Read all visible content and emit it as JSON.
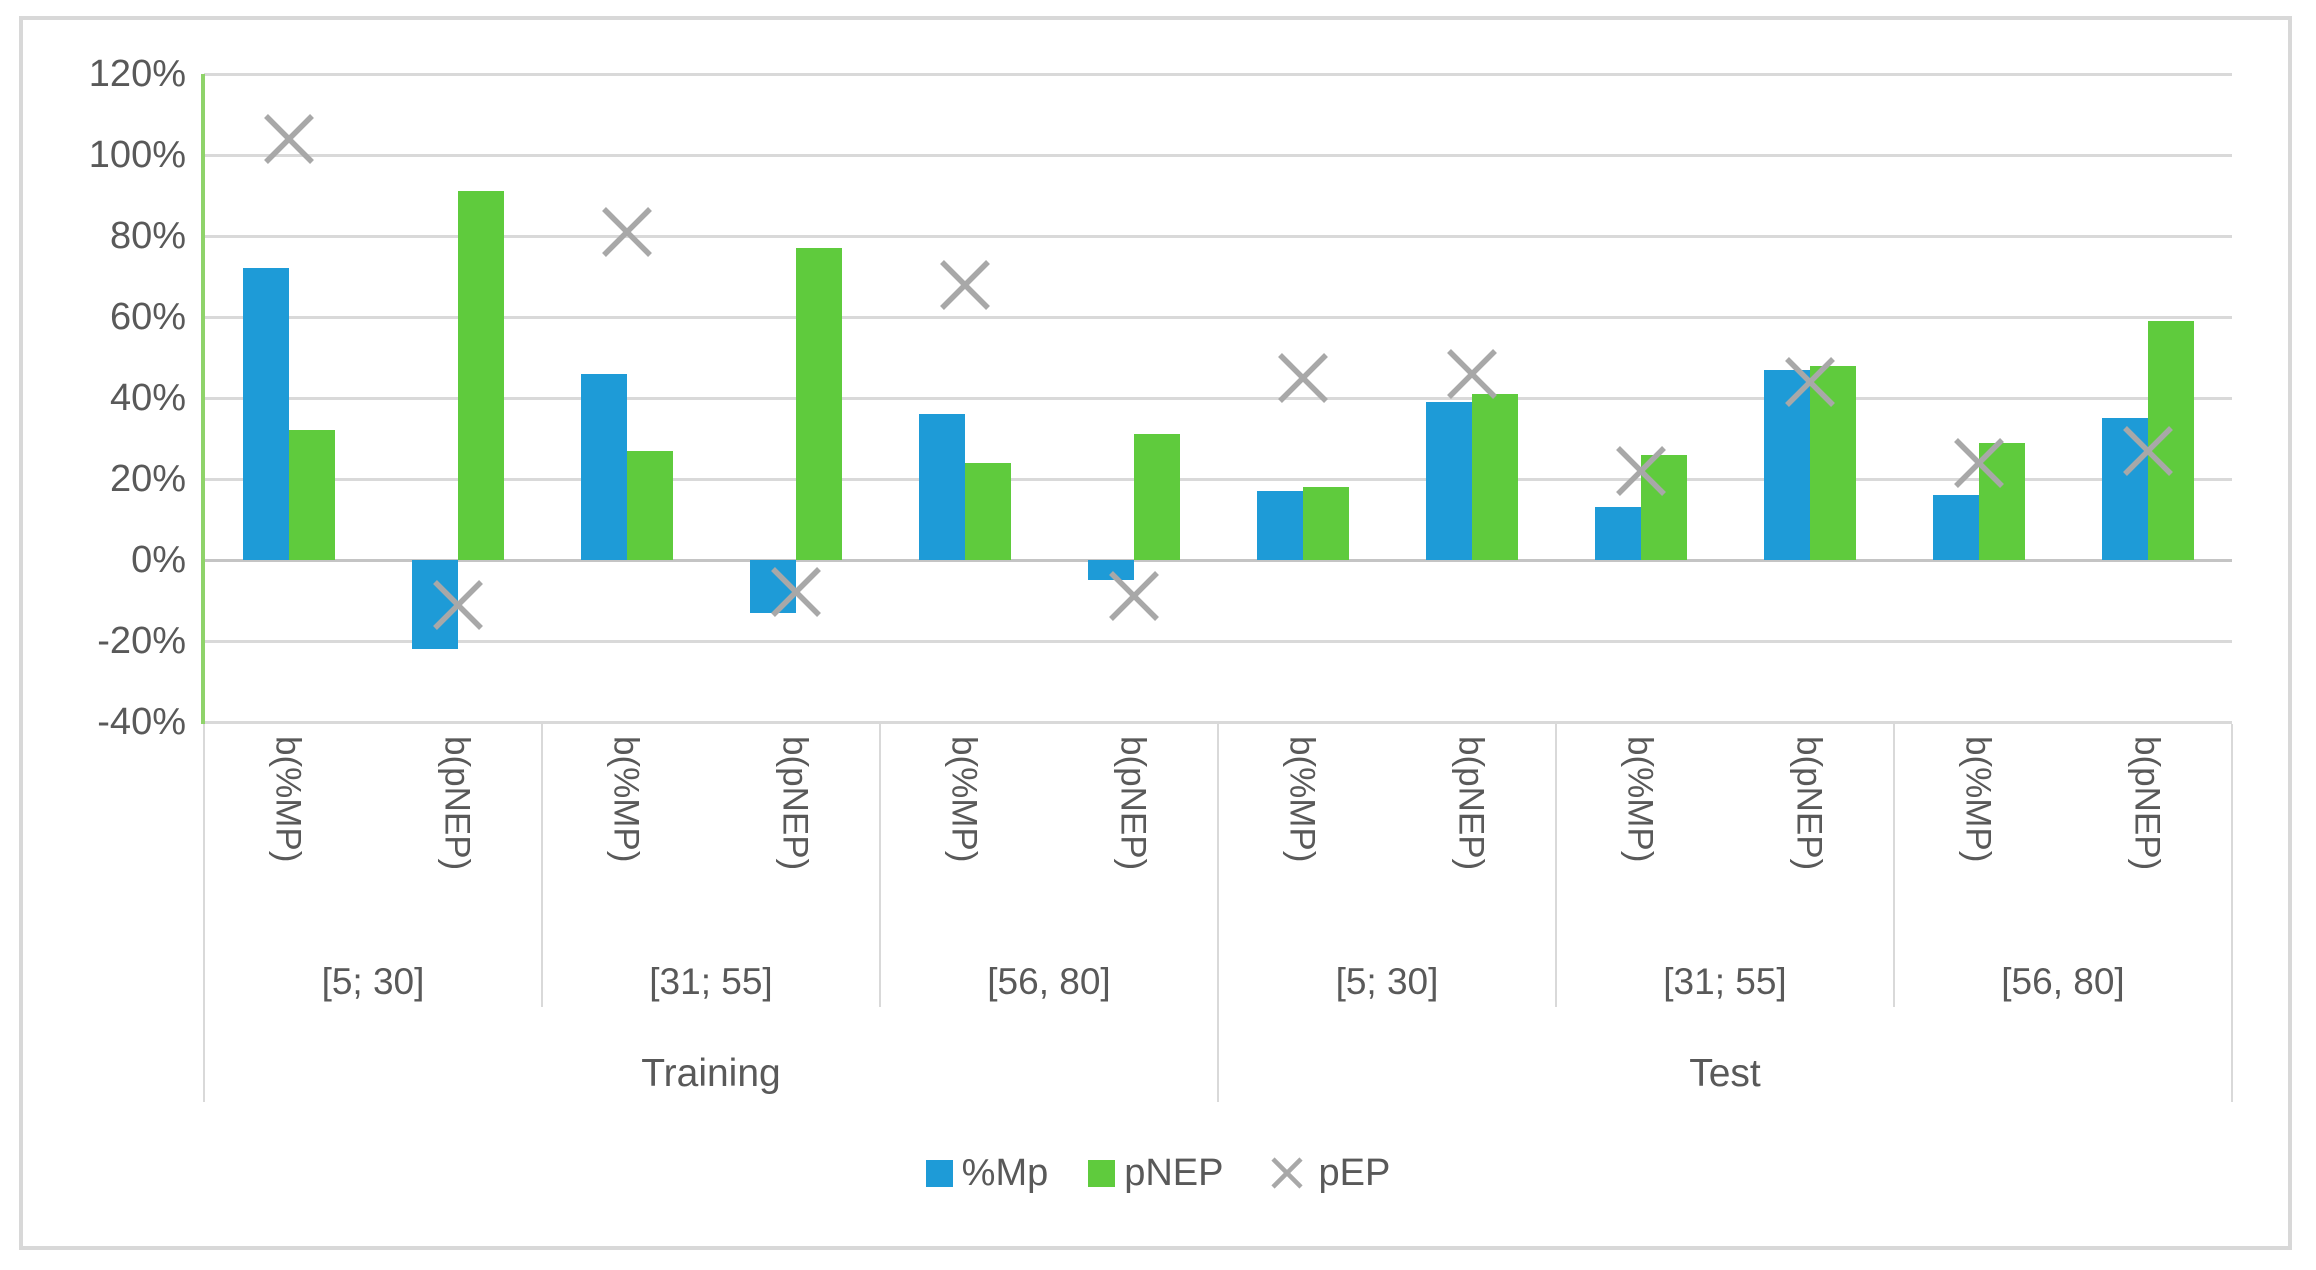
{
  "figure": {
    "background": "#FFFFFF",
    "border_color": "#D8D8D8"
  },
  "colors": {
    "bar_blue": "#1E9BD7",
    "bar_green": "#5FCB3D",
    "marker_gray": "#A8A8A8",
    "gridline": "#D9D9D9",
    "zero_line": "#C4C4C4",
    "value_axis_line_green": "#8FD36A",
    "axis_text": "#595959"
  },
  "chart_data": {
    "type": "bar",
    "title": "",
    "xlabel": "",
    "ylabel": "",
    "ylim": [
      -40,
      120
    ],
    "gridline_step": 20,
    "grid": "horizontal",
    "legend_position": "bottom",
    "yticks": [
      {
        "value": 120,
        "label": "120%"
      },
      {
        "value": 100,
        "label": "100%"
      },
      {
        "value": 80,
        "label": "80%"
      },
      {
        "value": 60,
        "label": "60%"
      },
      {
        "value": 40,
        "label": "40%"
      },
      {
        "value": 20,
        "label": "20%"
      },
      {
        "value": 0,
        "label": "0%"
      },
      {
        "value": -20,
        "label": "-20%"
      },
      {
        "value": -40,
        "label": "-40%"
      }
    ],
    "sections": [
      {
        "label": "Training",
        "ranges": [
          {
            "label": "[5; 30]"
          },
          {
            "label": "[31; 55]"
          },
          {
            "label": "[56, 80]"
          }
        ]
      },
      {
        "label": "Test",
        "ranges": [
          {
            "label": "[5; 30]"
          },
          {
            "label": "[31; 55]"
          },
          {
            "label": "[56, 80]"
          }
        ]
      }
    ],
    "category_labels": [
      "b(%MP)",
      "b(pNEP)",
      "b(%MP)",
      "b(pNEP)",
      "b(%MP)",
      "b(pNEP)",
      "b(%MP)",
      "b(pNEP)",
      "b(%MP)",
      "b(pNEP)",
      "b(%MP)",
      "b(pNEP)"
    ],
    "series": [
      {
        "name": "%Mp",
        "type": "bar",
        "color": "#1E9BD7",
        "values": [
          72,
          -22,
          46,
          -13,
          36,
          -5,
          17,
          39,
          13,
          47,
          16,
          35
        ]
      },
      {
        "name": "pNEP",
        "type": "bar",
        "color": "#5FCB3D",
        "values": [
          32,
          91,
          27,
          77,
          24,
          31,
          18,
          41,
          26,
          48,
          29,
          59
        ]
      },
      {
        "name": "pEP",
        "type": "marker_x",
        "color": "#A8A8A8",
        "values": [
          104,
          -11,
          81,
          -8,
          68,
          -9,
          45,
          46,
          22,
          44,
          24,
          27
        ]
      }
    ]
  },
  "legend": {
    "items": [
      {
        "label": "%Mp",
        "swatch": "square",
        "color": "#1E9BD7"
      },
      {
        "label": "pNEP",
        "swatch": "square",
        "color": "#5FCB3D"
      },
      {
        "label": "pEP",
        "swatch": "x",
        "color": "#A8A8A8"
      }
    ]
  }
}
